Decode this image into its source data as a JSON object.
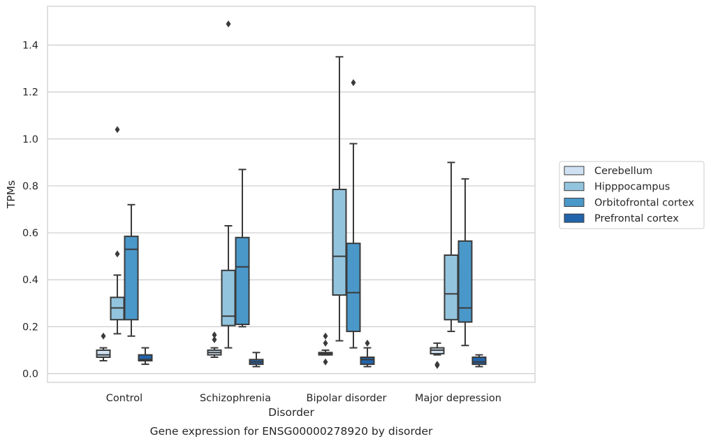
{
  "colors": {
    "cerebellum": "#cfe1f2",
    "hippocampus": "#93c4de",
    "orbitofrontal": "#4a98c9",
    "prefrontal": "#2164ab",
    "box_edge": "#3a3a3a",
    "grid": "#cccccc",
    "frame": "#cccccc"
  },
  "chart_data": {
    "type": "box",
    "title": "",
    "caption": "Gene expression for ENSG00000278920 by disorder",
    "xlabel": "Disorder",
    "ylabel": "TPMs",
    "ylim": [
      -0.04,
      1.57
    ],
    "yticks": [
      0.0,
      0.2,
      0.4,
      0.6,
      0.8,
      1.0,
      1.2,
      1.4
    ],
    "ytick_labels": [
      "0.0",
      "0.2",
      "0.4",
      "0.6",
      "0.8",
      "1.0",
      "1.2",
      "1.4"
    ],
    "grid": "horizontal",
    "legend_position": "right-center",
    "categories": [
      "Control",
      "Schizophrenia",
      "Bipolar disorder",
      "Major depression"
    ],
    "series": [
      {
        "name": "Cerebellum",
        "color_key": "cerebellum",
        "boxes": [
          {
            "whisker_low": 0.055,
            "q1": 0.07,
            "median": 0.08,
            "q3": 0.1,
            "whisker_high": 0.11,
            "outliers": [
              0.16
            ]
          },
          {
            "whisker_low": 0.07,
            "q1": 0.08,
            "median": 0.09,
            "q3": 0.1,
            "whisker_high": 0.11,
            "outliers": [
              0.145,
              0.165
            ]
          },
          {
            "whisker_low": 0.08,
            "q1": 0.08,
            "median": 0.085,
            "q3": 0.09,
            "whisker_high": 0.1,
            "outliers": [
              0.05,
              0.13,
              0.16
            ]
          },
          {
            "whisker_low": 0.08,
            "q1": 0.085,
            "median": 0.1,
            "q3": 0.11,
            "whisker_high": 0.13,
            "outliers": [
              0.035,
              0.04
            ]
          }
        ]
      },
      {
        "name": "Hipppocampus",
        "color_key": "hippocampus",
        "boxes": [
          {
            "whisker_low": 0.17,
            "q1": 0.23,
            "median": 0.28,
            "q3": 0.325,
            "whisker_high": 0.42,
            "outliers": [
              0.51,
              1.04
            ]
          },
          {
            "whisker_low": 0.11,
            "q1": 0.205,
            "median": 0.245,
            "q3": 0.44,
            "whisker_high": 0.63,
            "outliers": [
              1.49
            ]
          },
          {
            "whisker_low": 0.14,
            "q1": 0.335,
            "median": 0.5,
            "q3": 0.785,
            "whisker_high": 1.35,
            "outliers": []
          },
          {
            "whisker_low": 0.18,
            "q1": 0.23,
            "median": 0.34,
            "q3": 0.505,
            "whisker_high": 0.9,
            "outliers": []
          }
        ]
      },
      {
        "name": "Orbitofrontal cortex",
        "color_key": "orbitofrontal",
        "boxes": [
          {
            "whisker_low": 0.16,
            "q1": 0.23,
            "median": 0.53,
            "q3": 0.585,
            "whisker_high": 0.72,
            "outliers": []
          },
          {
            "whisker_low": 0.2,
            "q1": 0.21,
            "median": 0.455,
            "q3": 0.58,
            "whisker_high": 0.87,
            "outliers": []
          },
          {
            "whisker_low": 0.11,
            "q1": 0.18,
            "median": 0.345,
            "q3": 0.555,
            "whisker_high": 0.98,
            "outliers": [
              1.24
            ]
          },
          {
            "whisker_low": 0.12,
            "q1": 0.22,
            "median": 0.28,
            "q3": 0.565,
            "whisker_high": 0.83,
            "outliers": []
          }
        ]
      },
      {
        "name": "Prefrontal cortex",
        "color_key": "prefrontal",
        "boxes": [
          {
            "whisker_low": 0.04,
            "q1": 0.055,
            "median": 0.06,
            "q3": 0.08,
            "whisker_high": 0.11,
            "outliers": []
          },
          {
            "whisker_low": 0.03,
            "q1": 0.04,
            "median": 0.05,
            "q3": 0.06,
            "whisker_high": 0.09,
            "outliers": []
          },
          {
            "whisker_low": 0.03,
            "q1": 0.04,
            "median": 0.06,
            "q3": 0.07,
            "whisker_high": 0.11,
            "outliers": [
              0.13
            ]
          },
          {
            "whisker_low": 0.03,
            "q1": 0.04,
            "median": 0.05,
            "q3": 0.07,
            "whisker_high": 0.08,
            "outliers": []
          }
        ]
      }
    ]
  }
}
